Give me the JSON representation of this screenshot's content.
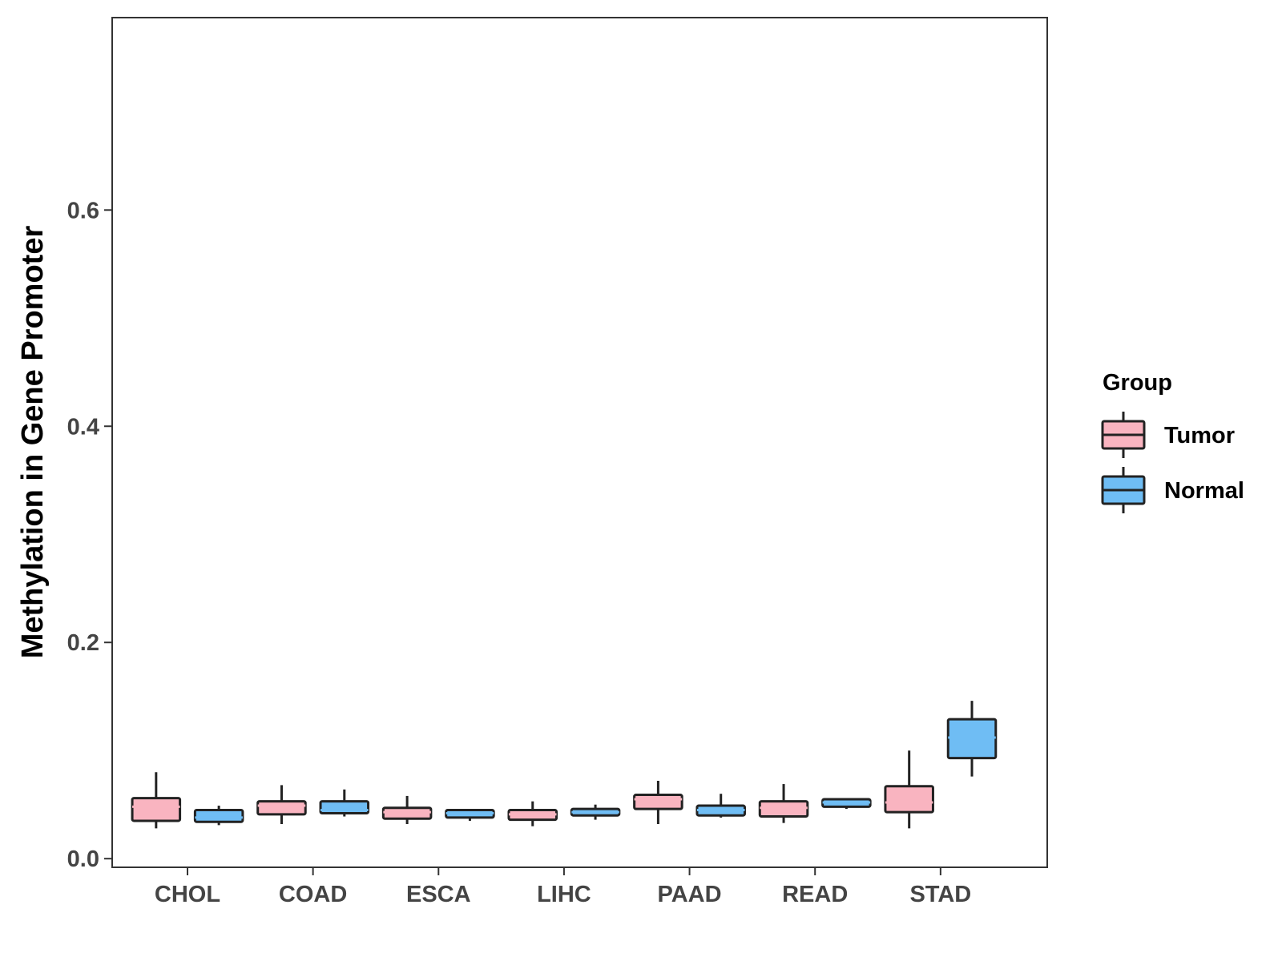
{
  "chart_data": {
    "type": "boxplot",
    "title": "",
    "xlabel": "",
    "ylabel": "Methylation in Gene Promoter",
    "ylim": [
      -0.008,
      0.778
    ],
    "yticks": [
      "0.0",
      "0.2",
      "0.4",
      "0.6"
    ],
    "ytick_values": [
      0.0,
      0.2,
      0.4,
      0.6
    ],
    "grid": false,
    "legend_position": "right",
    "legend_title": "Group",
    "categories": [
      "CHOL",
      "COAD",
      "ESCA",
      "LIHC",
      "PAAD",
      "READ",
      "STAD"
    ],
    "series": [
      {
        "name": "Tumor",
        "fill": "#f9b4c0",
        "median_color": "#f9b4c0",
        "boxes": [
          {
            "min": 0.028,
            "q1": 0.035,
            "median": 0.048,
            "q3": 0.056,
            "max": 0.08
          },
          {
            "min": 0.032,
            "q1": 0.041,
            "median": 0.049,
            "q3": 0.053,
            "max": 0.068
          },
          {
            "min": 0.032,
            "q1": 0.037,
            "median": 0.043,
            "q3": 0.047,
            "max": 0.058
          },
          {
            "min": 0.03,
            "q1": 0.036,
            "median": 0.041,
            "q3": 0.045,
            "max": 0.053
          },
          {
            "min": 0.032,
            "q1": 0.046,
            "median": 0.055,
            "q3": 0.059,
            "max": 0.072
          },
          {
            "min": 0.033,
            "q1": 0.039,
            "median": 0.047,
            "q3": 0.053,
            "max": 0.069
          },
          {
            "min": 0.028,
            "q1": 0.043,
            "median": 0.052,
            "q3": 0.067,
            "max": 0.1
          }
        ]
      },
      {
        "name": "Normal",
        "fill": "#6fbdf4",
        "median_color": "#6fbdf4",
        "boxes": [
          {
            "min": 0.031,
            "q1": 0.034,
            "median": 0.038,
            "q3": 0.045,
            "max": 0.049
          },
          {
            "min": 0.039,
            "q1": 0.042,
            "median": 0.045,
            "q3": 0.053,
            "max": 0.064
          },
          {
            "min": 0.035,
            "q1": 0.038,
            "median": 0.042,
            "q3": 0.045,
            "max": 0.046
          },
          {
            "min": 0.036,
            "q1": 0.04,
            "median": 0.043,
            "q3": 0.046,
            "max": 0.05
          },
          {
            "min": 0.038,
            "q1": 0.04,
            "median": 0.045,
            "q3": 0.049,
            "max": 0.06
          },
          {
            "min": 0.046,
            "q1": 0.048,
            "median": 0.052,
            "q3": 0.055,
            "max": 0.056
          },
          {
            "min": 0.076,
            "q1": 0.093,
            "median": 0.112,
            "q3": 0.129,
            "max": 0.146
          }
        ]
      }
    ]
  }
}
